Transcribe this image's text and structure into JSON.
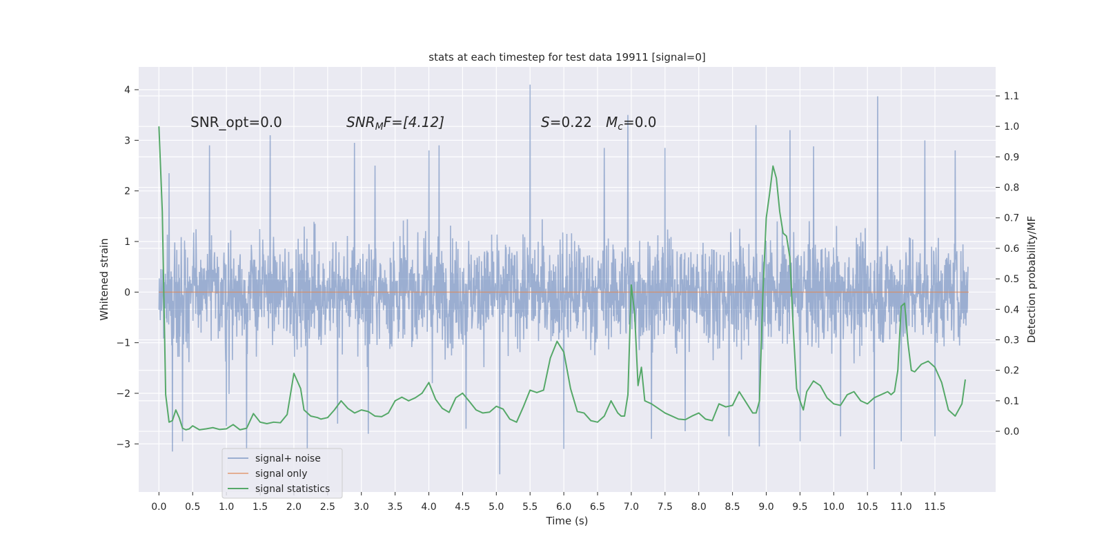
{
  "chart_data": {
    "type": "line",
    "title": "stats at each timestep for test data 19911 [signal=0]",
    "xlabel": "Time (s)",
    "ylabel_left": "Whitened strain",
    "ylabel_right": "Detection probability/MF",
    "xlim": [
      -0.3,
      12.4
    ],
    "ylim_left": [
      -3.95,
      4.45
    ],
    "ylim_right": [
      -0.199,
      1.195
    ],
    "xticks": [
      0.0,
      0.5,
      1.0,
      1.5,
      2.0,
      2.5,
      3.0,
      3.5,
      4.0,
      4.5,
      5.0,
      5.5,
      6.0,
      6.5,
      7.0,
      7.5,
      8.0,
      8.5,
      9.0,
      9.5,
      10.0,
      10.5,
      11.0,
      11.5
    ],
    "xtick_labels": [
      "0.0",
      "0.5",
      "1.0",
      "1.5",
      "2.0",
      "2.5",
      "3.0",
      "3.5",
      "4.0",
      "4.5",
      "5.0",
      "5.5",
      "6.0",
      "6.5",
      "7.0",
      "7.5",
      "8.0",
      "8.5",
      "9.0",
      "9.5",
      "10.0",
      "10.5",
      "11.0",
      "11.5"
    ],
    "yticks_left": [
      -3,
      -2,
      -1,
      0,
      1,
      2,
      3,
      4
    ],
    "ytick_labels_left": [
      "−3",
      "−2",
      "−1",
      "0",
      "1",
      "2",
      "3",
      "4"
    ],
    "yticks_right": [
      0.0,
      0.1,
      0.2,
      0.3,
      0.4,
      0.5,
      0.6,
      0.7,
      0.8,
      0.9,
      1.0,
      1.1
    ],
    "ytick_labels_right": [
      "0.0",
      "0.1",
      "0.2",
      "0.3",
      "0.4",
      "0.5",
      "0.6",
      "0.7",
      "0.8",
      "0.9",
      "1.0",
      "1.1"
    ],
    "grid": true,
    "legend_position": "lower-left",
    "annotations": [
      "SNR_opt=0.0",
      "SNR",
      "M",
      "F=[4.12]",
      "S",
      "=0.22",
      "M",
      "c",
      "=0.0"
    ],
    "series": [
      {
        "name": "signal+ noise",
        "axis": "left",
        "color": "#4c72b0",
        "kind": "noise-trace",
        "t_start": 0.0,
        "t_end": 11.99,
        "typical_range": [
          -1.5,
          1.5
        ],
        "peaks": [
          [
            5.5,
            4.1
          ],
          [
            10.65,
            3.87
          ],
          [
            6.95,
            3.5
          ],
          [
            8.85,
            3.3
          ],
          [
            0.35,
            3.2
          ],
          [
            9.35,
            3.2
          ],
          [
            1.65,
            3.1
          ],
          [
            2.9,
            2.95
          ],
          [
            11.35,
            3.0
          ],
          [
            0.75,
            2.9
          ],
          [
            4.15,
            2.9
          ],
          [
            4.0,
            2.8
          ],
          [
            7.5,
            2.85
          ],
          [
            9.7,
            2.88
          ],
          [
            11.8,
            2.8
          ],
          [
            0.15,
            2.35
          ],
          [
            3.2,
            2.5
          ],
          [
            6.6,
            2.85
          ]
        ],
        "troughs": [
          [
            5.05,
            -3.6
          ],
          [
            10.6,
            -3.5
          ],
          [
            0.2,
            -3.15
          ],
          [
            1.3,
            -3.1
          ],
          [
            2.2,
            -3.1
          ],
          [
            6.0,
            -3.1
          ],
          [
            8.9,
            -3.05
          ],
          [
            11.0,
            -2.95
          ],
          [
            9.5,
            -2.95
          ],
          [
            7.3,
            -2.9
          ],
          [
            3.1,
            -2.8
          ],
          [
            8.45,
            -2.85
          ],
          [
            4.55,
            -2.7
          ],
          [
            11.5,
            -2.85
          ],
          [
            1.0,
            -2.65
          ],
          [
            0.35,
            -2.95
          ],
          [
            7.8,
            -2.75
          ],
          [
            2.65,
            -2.6
          ],
          [
            10.1,
            -2.85
          ]
        ]
      },
      {
        "name": "signal only",
        "axis": "left",
        "color": "#dd8452",
        "x": [
          0.0,
          12.0
        ],
        "y": [
          0.0,
          0.0
        ]
      },
      {
        "name": "signal statistics",
        "axis": "right",
        "color": "#55a868",
        "x": [
          0.0,
          0.05,
          0.1,
          0.15,
          0.2,
          0.25,
          0.3,
          0.35,
          0.4,
          0.45,
          0.5,
          0.6,
          0.7,
          0.8,
          0.9,
          1.0,
          1.1,
          1.2,
          1.3,
          1.4,
          1.5,
          1.6,
          1.7,
          1.8,
          1.9,
          2.0,
          2.1,
          2.15,
          2.25,
          2.35,
          2.4,
          2.5,
          2.6,
          2.7,
          2.8,
          2.9,
          3.0,
          3.1,
          3.2,
          3.3,
          3.4,
          3.5,
          3.6,
          3.7,
          3.8,
          3.9,
          4.0,
          4.1,
          4.2,
          4.3,
          4.4,
          4.5,
          4.6,
          4.7,
          4.8,
          4.9,
          5.0,
          5.1,
          5.2,
          5.3,
          5.4,
          5.5,
          5.6,
          5.7,
          5.8,
          5.9,
          6.0,
          6.1,
          6.2,
          6.3,
          6.4,
          6.5,
          6.6,
          6.7,
          6.8,
          6.85,
          6.9,
          6.95,
          7.0,
          7.05,
          7.1,
          7.15,
          7.2,
          7.3,
          7.4,
          7.5,
          7.6,
          7.7,
          7.8,
          7.9,
          8.0,
          8.1,
          8.2,
          8.3,
          8.4,
          8.5,
          8.6,
          8.7,
          8.8,
          8.85,
          8.9,
          8.95,
          9.0,
          9.05,
          9.1,
          9.15,
          9.2,
          9.25,
          9.3,
          9.35,
          9.4,
          9.45,
          9.5,
          9.55,
          9.6,
          9.7,
          9.8,
          9.9,
          10.0,
          10.1,
          10.2,
          10.3,
          10.4,
          10.5,
          10.6,
          10.7,
          10.8,
          10.85,
          10.9,
          10.95,
          11.0,
          11.05,
          11.1,
          11.15,
          11.2,
          11.3,
          11.4,
          11.5,
          11.6,
          11.7,
          11.8,
          11.9,
          11.95
        ],
        "y": [
          1.0,
          0.72,
          0.12,
          0.03,
          0.035,
          0.07,
          0.045,
          0.01,
          0.005,
          0.008,
          0.018,
          0.005,
          0.008,
          0.012,
          0.006,
          0.008,
          0.022,
          0.005,
          0.01,
          0.058,
          0.03,
          0.025,
          0.03,
          0.028,
          0.055,
          0.19,
          0.14,
          0.07,
          0.05,
          0.045,
          0.04,
          0.045,
          0.07,
          0.1,
          0.075,
          0.06,
          0.07,
          0.065,
          0.05,
          0.048,
          0.06,
          0.1,
          0.112,
          0.1,
          0.11,
          0.125,
          0.16,
          0.105,
          0.075,
          0.062,
          0.11,
          0.125,
          0.098,
          0.07,
          0.06,
          0.063,
          0.082,
          0.073,
          0.04,
          0.03,
          0.08,
          0.135,
          0.127,
          0.135,
          0.24,
          0.295,
          0.26,
          0.14,
          0.065,
          0.06,
          0.035,
          0.03,
          0.05,
          0.1,
          0.06,
          0.05,
          0.05,
          0.12,
          0.48,
          0.385,
          0.15,
          0.21,
          0.1,
          0.09,
          0.075,
          0.06,
          0.05,
          0.04,
          0.038,
          0.05,
          0.06,
          0.04,
          0.035,
          0.09,
          0.08,
          0.085,
          0.13,
          0.095,
          0.06,
          0.06,
          0.1,
          0.45,
          0.7,
          0.78,
          0.87,
          0.83,
          0.72,
          0.65,
          0.64,
          0.57,
          0.34,
          0.14,
          0.1,
          0.07,
          0.13,
          0.165,
          0.15,
          0.11,
          0.09,
          0.085,
          0.12,
          0.13,
          0.1,
          0.09,
          0.11,
          0.12,
          0.13,
          0.12,
          0.13,
          0.2,
          0.41,
          0.42,
          0.29,
          0.2,
          0.195,
          0.22,
          0.23,
          0.21,
          0.16,
          0.07,
          0.05,
          0.09,
          0.17
        ]
      }
    ]
  }
}
